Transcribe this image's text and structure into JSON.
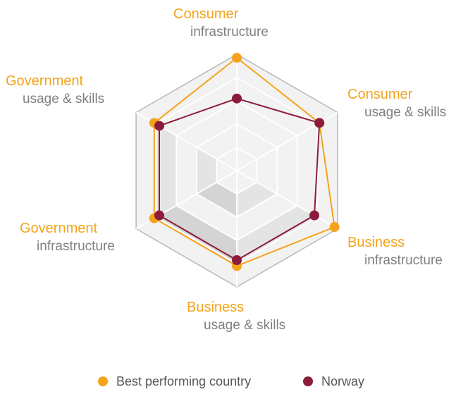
{
  "chart_data": {
    "type": "radar",
    "title": "",
    "categories": [
      {
        "title": "Consumer",
        "subtitle": "infrastructure"
      },
      {
        "title": "Consumer",
        "subtitle": "usage & skills"
      },
      {
        "title": "Business",
        "subtitle": "infrastructure"
      },
      {
        "title": "Business",
        "subtitle": "usage & skills"
      },
      {
        "title": "Government",
        "subtitle": "infrastructure"
      },
      {
        "title": "Government",
        "subtitle": "usage & skills"
      }
    ],
    "rlim": [
      0,
      1
    ],
    "grid_levels": 5,
    "series": [
      {
        "name": "Best performing country",
        "color": "#f5a31a",
        "values": [
          0.97,
          0.82,
          0.97,
          0.82,
          0.82,
          0.82
        ]
      },
      {
        "name": "Norway",
        "color": "#8c1c3c",
        "values": [
          0.62,
          0.82,
          0.77,
          0.77,
          0.77,
          0.77
        ]
      }
    ],
    "legend": {
      "position": "bottom"
    },
    "colors": {
      "title_text": "#f5a31a",
      "subtitle_text": "#808080",
      "grid_line": "#ffffff",
      "outer_border": "#b8b8b8",
      "shade_light": "#f2f2f2",
      "shade_mid": "#e4e4e4",
      "shade_dark": "#d4d4d4"
    }
  }
}
